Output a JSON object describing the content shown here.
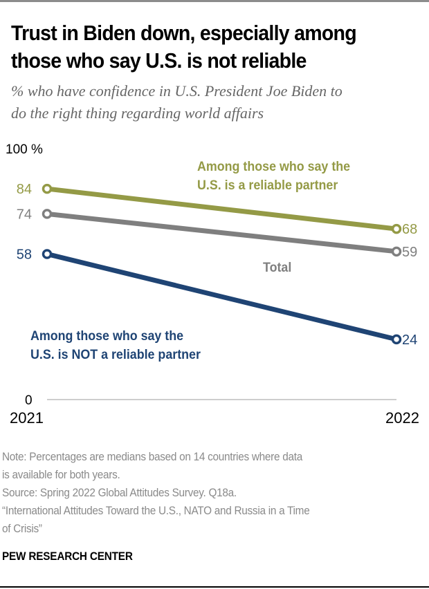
{
  "header": {
    "title_line1": "Trust in Biden down, especially among",
    "title_line2": "those who say U.S. is not reliable",
    "subtitle_line1": "% who have confidence in U.S. President Joe Biden to",
    "subtitle_line2": "do the right thing regarding world affairs"
  },
  "footer": {
    "note_line1": "Note: Percentages are medians based on 14 countries where data",
    "note_line2": "is available for both years.",
    "source": "Source: Spring 2022 Global Attitudes Survey. Q18a.",
    "report_line1": "“International Attitudes Toward the U.S., NATO and Russia in a Time",
    "report_line2": "of Crisis”",
    "brand": "PEW RESEARCH CENTER"
  },
  "chart_data": {
    "type": "line",
    "title": "Trust in Biden down, especially among those who say U.S. is not reliable",
    "subtitle": "% who have confidence in U.S. President Joe Biden to do the right thing regarding world affairs",
    "x": [
      "2021",
      "2022"
    ],
    "xlabel": "",
    "ylabel": "",
    "ylim": [
      0,
      100
    ],
    "y_ticks": [
      {
        "value": 100,
        "label": "100 %"
      },
      {
        "value": 0,
        "label": "0"
      }
    ],
    "grid": false,
    "series": [
      {
        "name": "Among those who say the U.S. is a reliable partner",
        "label_lines": [
          "Among those who say the",
          "U.S. is a reliable partner"
        ],
        "color": "#949a46",
        "values": [
          84,
          68
        ]
      },
      {
        "name": "Total",
        "label_lines": [
          "Total"
        ],
        "color": "#7f7f7f",
        "values": [
          74,
          59
        ]
      },
      {
        "name": "Among those who say the U.S. is NOT a reliable partner",
        "label_lines": [
          "Among those who say the",
          "U.S. is NOT a reliable partner"
        ],
        "color": "#1f4474",
        "values": [
          58,
          24
        ]
      }
    ],
    "baseline_color": "#bdbdbd"
  }
}
